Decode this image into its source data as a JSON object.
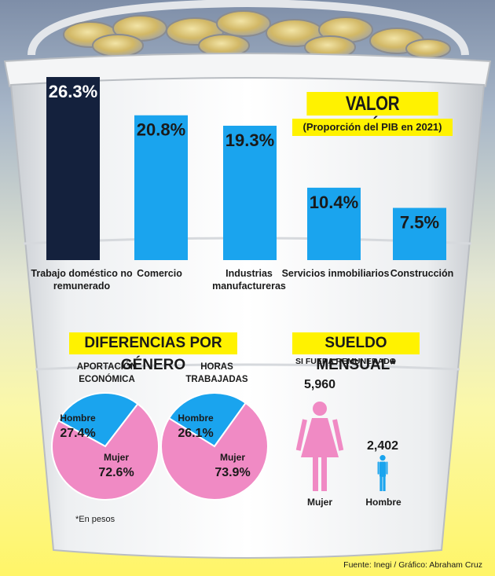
{
  "chart_data": [
    {
      "type": "bar",
      "title": "VALOR ECONÓMICO",
      "subtitle": "(Proporción del PIB en 2021)",
      "categories": [
        "Trabajo doméstico no remunerado",
        "Comercio",
        "Industrias manufactureras",
        "Servicios inmobiliarios",
        "Construcción"
      ],
      "values": [
        26.3,
        20.8,
        19.3,
        10.4,
        7.5
      ],
      "value_labels": [
        "26.3%",
        "20.8%",
        "19.3%",
        "10.4%",
        "7.5%"
      ],
      "unit": "%",
      "colors": [
        "#14213d",
        "#1aa4ee",
        "#1aa4ee",
        "#1aa4ee",
        "#1aa4ee"
      ],
      "ylim": [
        0,
        26.3
      ]
    },
    {
      "type": "pie",
      "title": "APORTACIÓN ECONÓMICA",
      "slices": [
        {
          "label": "Hombre",
          "value": 27.4,
          "value_label": "27.4%",
          "color": "#1aa4ee"
        },
        {
          "label": "Mujer",
          "value": 72.6,
          "value_label": "72.6%",
          "color": "#f08ac4"
        }
      ]
    },
    {
      "type": "pie",
      "title": "HORAS TRABAJADAS",
      "slices": [
        {
          "label": "Hombre",
          "value": 26.1,
          "value_label": "26.1%",
          "color": "#1aa4ee"
        },
        {
          "label": "Mujer",
          "value": 73.9,
          "value_label": "73.9%",
          "color": "#f08ac4"
        }
      ]
    },
    {
      "type": "bar",
      "title": "SUELDO MENSUAL*",
      "subtitle": "SI FUERA REMUNERADO",
      "categories": [
        "Mujer",
        "Hombre"
      ],
      "values": [
        5960,
        2402
      ],
      "value_labels": [
        "5,960",
        "2,402"
      ],
      "colors": [
        "#f08ac4",
        "#1aa4ee"
      ]
    }
  ],
  "texts": {
    "gender_title": "DIFERENCIAS POR GÉNERO",
    "note": "*En pesos",
    "source": "Fuente: Inegi / Gráfico: Abraham Cruz"
  },
  "colors": {
    "highlight": "#fff200",
    "bar_primary": "#14213d",
    "bar_secondary": "#1aa4ee",
    "mujer": "#f08ac4",
    "hombre": "#1aa4ee"
  }
}
